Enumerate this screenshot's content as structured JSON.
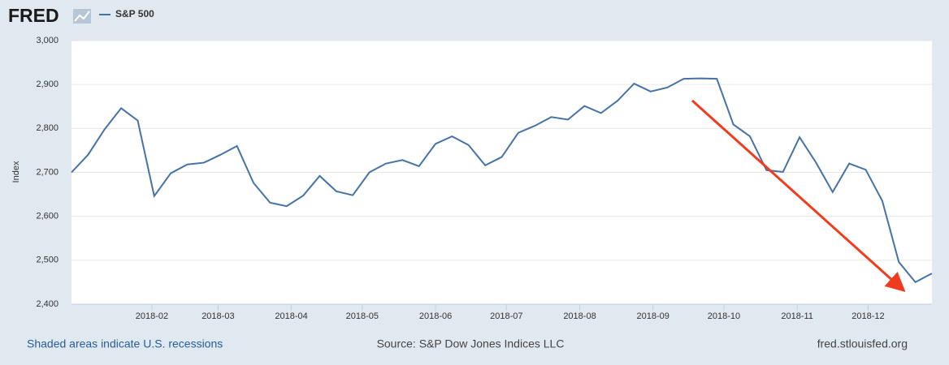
{
  "header": {
    "logo": "FRED"
  },
  "chart_data": {
    "type": "line",
    "y_label": "Index",
    "x": [
      "2017-12-29",
      "2018-01-05",
      "2018-01-12",
      "2018-01-19",
      "2018-01-26",
      "2018-02-02",
      "2018-02-09",
      "2018-02-16",
      "2018-02-23",
      "2018-03-02",
      "2018-03-09",
      "2018-03-16",
      "2018-03-23",
      "2018-03-30",
      "2018-04-06",
      "2018-04-13",
      "2018-04-20",
      "2018-04-27",
      "2018-05-04",
      "2018-05-11",
      "2018-05-18",
      "2018-05-25",
      "2018-06-01",
      "2018-06-08",
      "2018-06-15",
      "2018-06-22",
      "2018-06-29",
      "2018-07-06",
      "2018-07-13",
      "2018-07-20",
      "2018-07-27",
      "2018-08-03",
      "2018-08-10",
      "2018-08-17",
      "2018-08-24",
      "2018-08-31",
      "2018-09-07",
      "2018-09-14",
      "2018-09-21",
      "2018-09-28",
      "2018-10-05",
      "2018-10-12",
      "2018-10-19",
      "2018-10-26",
      "2018-11-02",
      "2018-11-09",
      "2018-11-16",
      "2018-11-23",
      "2018-11-30",
      "2018-12-07",
      "2018-12-14",
      "2018-12-21",
      "2018-12-28"
    ],
    "series": [
      {
        "name": "S&P 500",
        "color": "#4572a7",
        "values": [
          2700,
          2740,
          2798,
          2846,
          2818,
          2646,
          2698,
          2718,
          2722,
          2740,
          2760,
          2676,
          2631,
          2623,
          2647,
          2692,
          2657,
          2648,
          2700,
          2720,
          2728,
          2714,
          2765,
          2782,
          2762,
          2716,
          2735,
          2790,
          2806,
          2826,
          2820,
          2851,
          2835,
          2863,
          2902,
          2884,
          2893,
          2913,
          2914,
          2913,
          2809,
          2782,
          2705,
          2701,
          2780,
          2722,
          2655,
          2720,
          2706,
          2635,
          2496,
          2450,
          2470
        ]
      }
    ],
    "xlim": [
      "2017-12-29",
      "2018-12-28"
    ],
    "xticks": [
      {
        "value": "2018-02-01",
        "label": "2018-02"
      },
      {
        "value": "2018-03-01",
        "label": "2018-03"
      },
      {
        "value": "2018-04-01",
        "label": "2018-04"
      },
      {
        "value": "2018-05-01",
        "label": "2018-05"
      },
      {
        "value": "2018-06-01",
        "label": "2018-06"
      },
      {
        "value": "2018-07-01",
        "label": "2018-07"
      },
      {
        "value": "2018-08-01",
        "label": "2018-08"
      },
      {
        "value": "2018-09-01",
        "label": "2018-09"
      },
      {
        "value": "2018-10-01",
        "label": "2018-10"
      },
      {
        "value": "2018-11-01",
        "label": "2018-11"
      },
      {
        "value": "2018-12-01",
        "label": "2018-12"
      }
    ],
    "ylim": [
      2400,
      3000
    ],
    "yticks": [
      {
        "value": 2400,
        "label": "2,400"
      },
      {
        "value": 2500,
        "label": "2,500"
      },
      {
        "value": 2600,
        "label": "2,600"
      },
      {
        "value": 2700,
        "label": "2,700"
      },
      {
        "value": 2800,
        "label": "2,800"
      },
      {
        "value": 2900,
        "label": "2,900"
      },
      {
        "value": 3000,
        "label": "3,000"
      }
    ],
    "grid": true
  },
  "footer": {
    "recessions": "Shaded areas indicate U.S. recessions",
    "source": "Source: S&P Dow Jones Indices LLC",
    "site": "fred.stlouisfed.org"
  }
}
